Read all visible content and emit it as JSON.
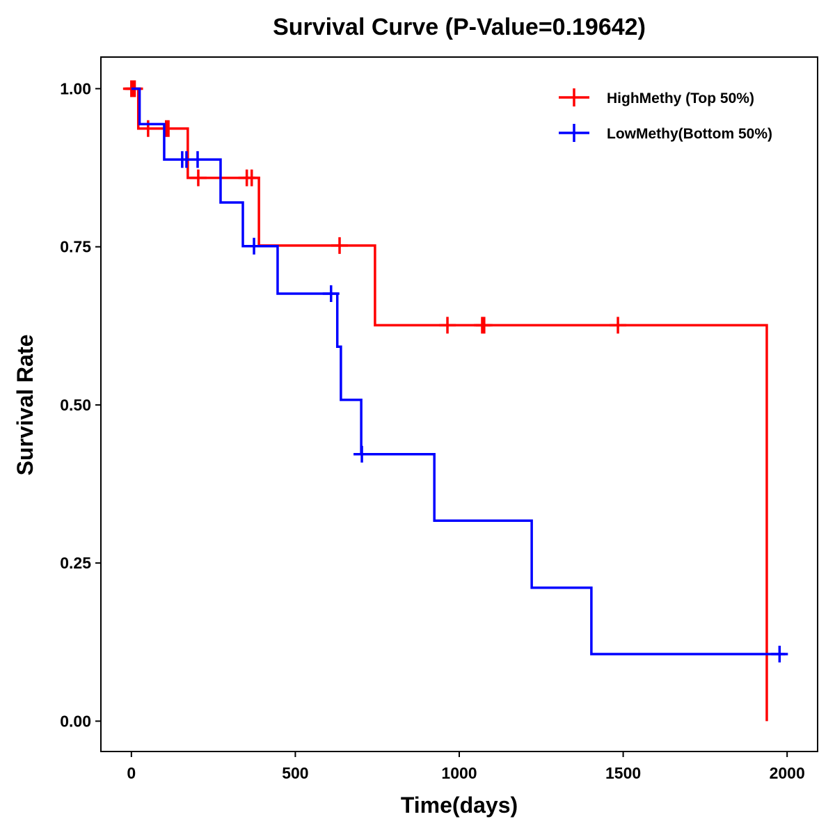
{
  "chart_data": {
    "type": "line",
    "subtype": "kaplan-meier step",
    "title": "Survival Curve (P-Value=0.19642)",
    "xlabel": "Time(days)",
    "ylabel": "Survival Rate",
    "xlim": [
      -93,
      2093
    ],
    "ylim": [
      -0.048,
      1.05
    ],
    "xticks": [
      0,
      500,
      1000,
      1500,
      2000
    ],
    "xtick_labels": [
      "0",
      "500",
      "1000",
      "1500",
      "2000"
    ],
    "yticks": [
      0,
      0.25,
      0.5,
      0.75,
      1.0
    ],
    "ytick_labels": [
      "0.00",
      "0.25",
      "0.50",
      "0.75",
      "1.00"
    ],
    "grid": false,
    "legend_position": "top-right",
    "series": [
      {
        "name": "HighMethy (Top 50%)",
        "color": "#ff0000",
        "steps": [
          [
            0,
            1.0
          ],
          [
            21,
            0.937
          ],
          [
            172,
            0.859
          ],
          [
            389,
            0.752
          ],
          [
            743,
            0.626
          ],
          [
            1938,
            0.0
          ]
        ],
        "end_time": 1938,
        "censored": [
          [
            0,
            1.0
          ],
          [
            5,
            1.0
          ],
          [
            10,
            1.0
          ],
          [
            51,
            0.937
          ],
          [
            106,
            0.937
          ],
          [
            113,
            0.937
          ],
          [
            204,
            0.859
          ],
          [
            352,
            0.859
          ],
          [
            367,
            0.859
          ],
          [
            635,
            0.752
          ],
          [
            964,
            0.626
          ],
          [
            1070,
            0.626
          ],
          [
            1076,
            0.626
          ],
          [
            1484,
            0.626
          ]
        ]
      },
      {
        "name": "LowMethy(Bottom 50%)",
        "color": "#0000ff",
        "steps": [
          [
            0,
            1.0
          ],
          [
            25,
            0.944
          ],
          [
            100,
            0.888
          ],
          [
            272,
            0.82
          ],
          [
            340,
            0.751
          ],
          [
            446,
            0.676
          ],
          [
            628,
            0.592
          ],
          [
            639,
            0.508
          ],
          [
            701,
            0.422
          ],
          [
            924,
            0.317
          ],
          [
            1221,
            0.211
          ],
          [
            1403,
            0.106
          ]
        ],
        "end_time": 1994,
        "censored": [
          [
            155,
            0.888
          ],
          [
            168,
            0.888
          ],
          [
            202,
            0.888
          ],
          [
            374,
            0.751
          ],
          [
            609,
            0.676
          ],
          [
            703,
            0.422
          ],
          [
            1977,
            0.106
          ]
        ]
      }
    ]
  }
}
